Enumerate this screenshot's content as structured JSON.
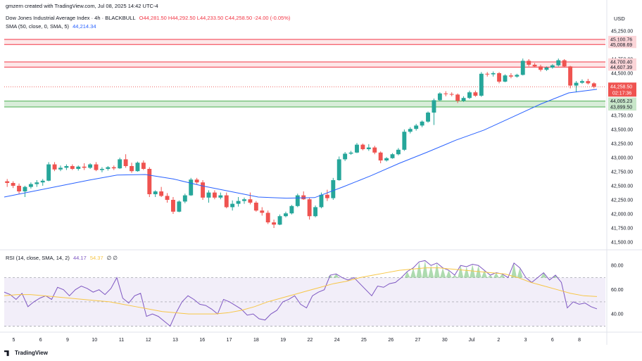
{
  "header": {
    "created_by": "gmzern created with TradingView.com, Jul 08, 2025 14:42 UTC-4",
    "symbol": "Dow Jones Industrial Average Index · 4h · BLACKBULL",
    "ohlc": "O44,281.50 H44,292.50 L44,233.50 C44,258.50 -24.00 (-0.05%)",
    "sma_label": "SMA (50, close, 0, SMA, 5)",
    "sma_value": "44,214.34",
    "rsi_label": "RSI (14, close, SMA, 14, 2)",
    "rsi_value": "44.17",
    "rsi_ma_value": "54.37",
    "rsi_extra": "∅ ∅"
  },
  "currency": "USD",
  "footer": {
    "brand": "TradingView"
  },
  "colors": {
    "up": "#26a69a",
    "down": "#ef5350",
    "sma": "#2962ff",
    "resistance": "#f23645",
    "support": "#4caf50",
    "rsi_line": "#7e57c2",
    "rsi_ma": "#f7c646"
  },
  "chart_data": [
    {
      "type": "candlestick",
      "ylim": [
        41400,
        45300
      ],
      "ytick_labels": [
        "45,250.00",
        "45,000.00",
        "44,750.00",
        "44,500.00",
        "44,250.00",
        "44,000.00",
        "43,750.00",
        "43,500.00",
        "43,250.00",
        "43,000.00",
        "42,750.00",
        "42,500.00",
        "42,250.00",
        "42,000.00",
        "41,750.00",
        "41,500.00"
      ],
      "yticks": [
        45250,
        45000,
        44750,
        44500,
        44250,
        44000,
        43750,
        43500,
        43250,
        43000,
        42750,
        42500,
        42250,
        42000,
        41750,
        41500
      ],
      "xtick_labels": [
        "5",
        "6",
        "9",
        "10",
        "11",
        "12",
        "13",
        "16",
        "17",
        "18",
        "19",
        "22",
        "24",
        "25",
        "26",
        "27",
        "30",
        "Jul",
        "2",
        "3",
        "6",
        "8"
      ],
      "zones": [
        {
          "kind": "resistance",
          "top": 45100.76,
          "bottom": 45008.69,
          "top_label": "45,100.76",
          "bottom_label": "45,008.69"
        },
        {
          "kind": "resistance",
          "top": 44700.4,
          "bottom": 44607.39,
          "top_label": "44,700.40",
          "bottom_label": "44,607.39"
        },
        {
          "kind": "support",
          "top": 44005.23,
          "bottom": 43899.5,
          "top_label": "44,005.23",
          "bottom_label": "43,899.50"
        }
      ],
      "last_price": {
        "value": 44258.5,
        "label": "44,258.50",
        "countdown": "02:17:36"
      },
      "ohlc": [
        [
          42580,
          42620,
          42480,
          42550
        ],
        [
          42550,
          42580,
          42460,
          42500
        ],
        [
          42500,
          42540,
          42360,
          42400
        ],
        [
          42400,
          42500,
          42300,
          42480
        ],
        [
          42480,
          42560,
          42450,
          42530
        ],
        [
          42530,
          42600,
          42480,
          42560
        ],
        [
          42560,
          42620,
          42500,
          42590
        ],
        [
          42590,
          42920,
          42580,
          42880
        ],
        [
          42880,
          42920,
          42760,
          42790
        ],
        [
          42790,
          42860,
          42760,
          42820
        ],
        [
          42820,
          42880,
          42780,
          42850
        ],
        [
          42850,
          42880,
          42780,
          42800
        ],
        [
          42800,
          42860,
          42770,
          42840
        ],
        [
          42840,
          42900,
          42780,
          42820
        ],
        [
          42820,
          42900,
          42800,
          42880
        ],
        [
          42880,
          42920,
          42760,
          42780
        ],
        [
          42780,
          42830,
          42740,
          42800
        ],
        [
          42800,
          42850,
          42770,
          42830
        ],
        [
          42830,
          42860,
          42780,
          42810
        ],
        [
          42810,
          43000,
          42800,
          42970
        ],
        [
          42970,
          43060,
          42820,
          42850
        ],
        [
          42850,
          42910,
          42730,
          42760
        ],
        [
          42760,
          42930,
          42750,
          42910
        ],
        [
          42910,
          42950,
          42780,
          42800
        ],
        [
          42800,
          42830,
          42300,
          42350
        ],
        [
          42350,
          42420,
          42300,
          42400
        ],
        [
          42400,
          42480,
          42300,
          42320
        ],
        [
          42320,
          42370,
          42200,
          42250
        ],
        [
          42250,
          42300,
          42000,
          42040
        ],
        [
          42040,
          42240,
          42030,
          42220
        ],
        [
          42220,
          42360,
          42190,
          42330
        ],
        [
          42330,
          42640,
          42320,
          42610
        ],
        [
          42610,
          42640,
          42530,
          42560
        ],
        [
          42560,
          42600,
          42250,
          42290
        ],
        [
          42290,
          42420,
          42200,
          42380
        ],
        [
          42380,
          42420,
          42260,
          42290
        ],
        [
          42290,
          42380,
          42260,
          42330
        ],
        [
          42330,
          42380,
          42100,
          42120
        ],
        [
          42120,
          42240,
          42060,
          42180
        ],
        [
          42180,
          42300,
          42130,
          42230
        ],
        [
          42230,
          42290,
          42180,
          42260
        ],
        [
          42260,
          42380,
          42170,
          42200
        ],
        [
          42200,
          42230,
          42040,
          42060
        ],
        [
          42060,
          42120,
          41970,
          42020
        ],
        [
          42020,
          42060,
          41820,
          41850
        ],
        [
          41850,
          41900,
          41750,
          41810
        ],
        [
          41810,
          41990,
          41800,
          41960
        ],
        [
          41960,
          42040,
          41940,
          42010
        ],
        [
          42010,
          42160,
          41990,
          42140
        ],
        [
          42140,
          42360,
          42120,
          42330
        ],
        [
          42330,
          42400,
          42250,
          42260
        ],
        [
          42260,
          42290,
          41900,
          41960
        ],
        [
          41960,
          42150,
          41940,
          42120
        ],
        [
          42120,
          42380,
          42100,
          42340
        ],
        [
          42340,
          42430,
          42230,
          42280
        ],
        [
          42280,
          42640,
          42250,
          42600
        ],
        [
          42600,
          43020,
          42590,
          42970
        ],
        [
          42970,
          43100,
          42940,
          43070
        ],
        [
          43070,
          43120,
          43050,
          43090
        ],
        [
          43090,
          43260,
          43080,
          43230
        ],
        [
          43230,
          43250,
          43130,
          43150
        ],
        [
          43150,
          43240,
          43120,
          43180
        ],
        [
          43180,
          43210,
          43060,
          43090
        ],
        [
          43090,
          43110,
          42900,
          42950
        ],
        [
          42950,
          43010,
          42930,
          42990
        ],
        [
          42990,
          43080,
          42980,
          43060
        ],
        [
          43060,
          43170,
          43040,
          43140
        ],
        [
          43140,
          43500,
          43120,
          43460
        ],
        [
          43460,
          43540,
          43430,
          43510
        ],
        [
          43510,
          43600,
          43480,
          43570
        ],
        [
          43570,
          43660,
          43540,
          43640
        ],
        [
          43640,
          43820,
          43620,
          43800
        ],
        [
          43800,
          44050,
          43580,
          44020
        ],
        [
          44020,
          44160,
          44000,
          44140
        ],
        [
          44140,
          44180,
          44090,
          44130
        ],
        [
          44130,
          44160,
          44090,
          44120
        ],
        [
          44120,
          44140,
          43970,
          44010
        ],
        [
          44010,
          44090,
          43990,
          44060
        ],
        [
          44060,
          44190,
          44040,
          44160
        ],
        [
          44160,
          44190,
          44080,
          44100
        ],
        [
          44100,
          44520,
          44080,
          44490
        ],
        [
          44490,
          44520,
          44440,
          44480
        ],
        [
          44480,
          44530,
          44440,
          44500
        ],
        [
          44500,
          44520,
          44320,
          44350
        ],
        [
          44350,
          44480,
          44340,
          44460
        ],
        [
          44460,
          44500,
          44410,
          44440
        ],
        [
          44440,
          44490,
          44420,
          44470
        ],
        [
          44470,
          44760,
          44460,
          44720
        ],
        [
          44720,
          44750,
          44620,
          44650
        ],
        [
          44650,
          44680,
          44600,
          44620
        ],
        [
          44620,
          44650,
          44530,
          44560
        ],
        [
          44560,
          44620,
          44540,
          44600
        ],
        [
          44600,
          44660,
          44580,
          44640
        ],
        [
          44640,
          44760,
          44620,
          44730
        ],
        [
          44730,
          44750,
          44600,
          44620
        ],
        [
          44620,
          44630,
          44230,
          44280
        ],
        [
          44280,
          44360,
          44160,
          44330
        ],
        [
          44330,
          44390,
          44310,
          44360
        ],
        [
          44360,
          44400,
          44300,
          44320
        ],
        [
          44320,
          44340,
          44230,
          44258.5
        ]
      ],
      "sma": [
        42300,
        42400,
        42500,
        42600,
        42690,
        42700,
        42620,
        42500,
        42400,
        42300,
        42280,
        42290,
        42480,
        42680,
        42900,
        43100,
        43310,
        43490,
        43720,
        43950,
        44150,
        44214.34
      ],
      "sma_x_labels": [
        "5",
        "6",
        "9",
        "10",
        "11",
        "12",
        "13",
        "16",
        "17",
        "18",
        "19",
        "22",
        "24",
        "25",
        "26",
        "27",
        "30",
        "Jul",
        "2",
        "3",
        "6",
        "8"
      ]
    },
    {
      "type": "line",
      "title": "RSI (14, close, SMA, 14, 2)",
      "ylim": [
        25,
        90
      ],
      "yticks": [
        80,
        60,
        40
      ],
      "ytick_labels": [
        "80.00",
        "60.00",
        "40.00"
      ],
      "bands": [
        70,
        50,
        30
      ],
      "series": [
        {
          "values": [
            58,
            56,
            52,
            57,
            46,
            50,
            53,
            55,
            52,
            62,
            60,
            55,
            60,
            63,
            61,
            58,
            60,
            56,
            61,
            70,
            53,
            49,
            55,
            57,
            38,
            40,
            38,
            34,
            30,
            41,
            50,
            55,
            52,
            48,
            47,
            44,
            40,
            52,
            50,
            47,
            44,
            39,
            40,
            36,
            35,
            40,
            43,
            50,
            52,
            55,
            48,
            45,
            55,
            58,
            60,
            72,
            73,
            70,
            68,
            70,
            65,
            60,
            55,
            63,
            62,
            65,
            66,
            70,
            75,
            78,
            83,
            84,
            80,
            82,
            78,
            76,
            72,
            80,
            79,
            81,
            80,
            76,
            72,
            74,
            73,
            70,
            82,
            78,
            70,
            66,
            70,
            74,
            68,
            72,
            66,
            45,
            50,
            48,
            49,
            46,
            44.17
          ]
        },
        {
          "values": [
            55,
            56,
            56,
            55,
            54,
            53,
            52,
            51,
            50,
            48,
            46,
            44,
            42,
            41,
            40,
            40,
            40,
            41,
            43,
            46,
            50,
            53,
            56,
            59,
            62,
            65,
            67,
            70,
            72,
            74,
            76,
            77,
            78,
            78,
            77,
            76,
            75,
            74,
            73,
            70,
            66,
            63,
            60,
            57,
            55,
            54.37
          ]
        }
      ]
    }
  ]
}
